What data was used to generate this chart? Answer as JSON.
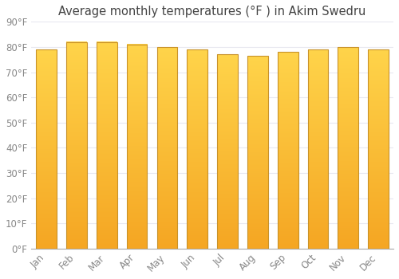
{
  "months": [
    "Jan",
    "Feb",
    "Mar",
    "Apr",
    "May",
    "Jun",
    "Jul",
    "Aug",
    "Sep",
    "Oct",
    "Nov",
    "Dec"
  ],
  "values": [
    79,
    82,
    82,
    81,
    80,
    79,
    77,
    76.5,
    78,
    79,
    80,
    79
  ],
  "title": "Average monthly temperatures (°F ) in Akim Swedru",
  "ylim": [
    0,
    90
  ],
  "yticks": [
    0,
    10,
    20,
    30,
    40,
    50,
    60,
    70,
    80,
    90
  ],
  "ytick_labels": [
    "0°F",
    "10°F",
    "20°F",
    "30°F",
    "40°F",
    "50°F",
    "60°F",
    "70°F",
    "80°F",
    "90°F"
  ],
  "bar_color_bottom": "#F5A623",
  "bar_color_top": "#FFD44A",
  "bar_edge_color": "#C8922A",
  "background_color": "#FFFFFF",
  "grid_color": "#E8E8F0",
  "title_fontsize": 10.5,
  "tick_fontsize": 8.5,
  "tick_color": "#888888",
  "font_family": "DejaVu Sans"
}
